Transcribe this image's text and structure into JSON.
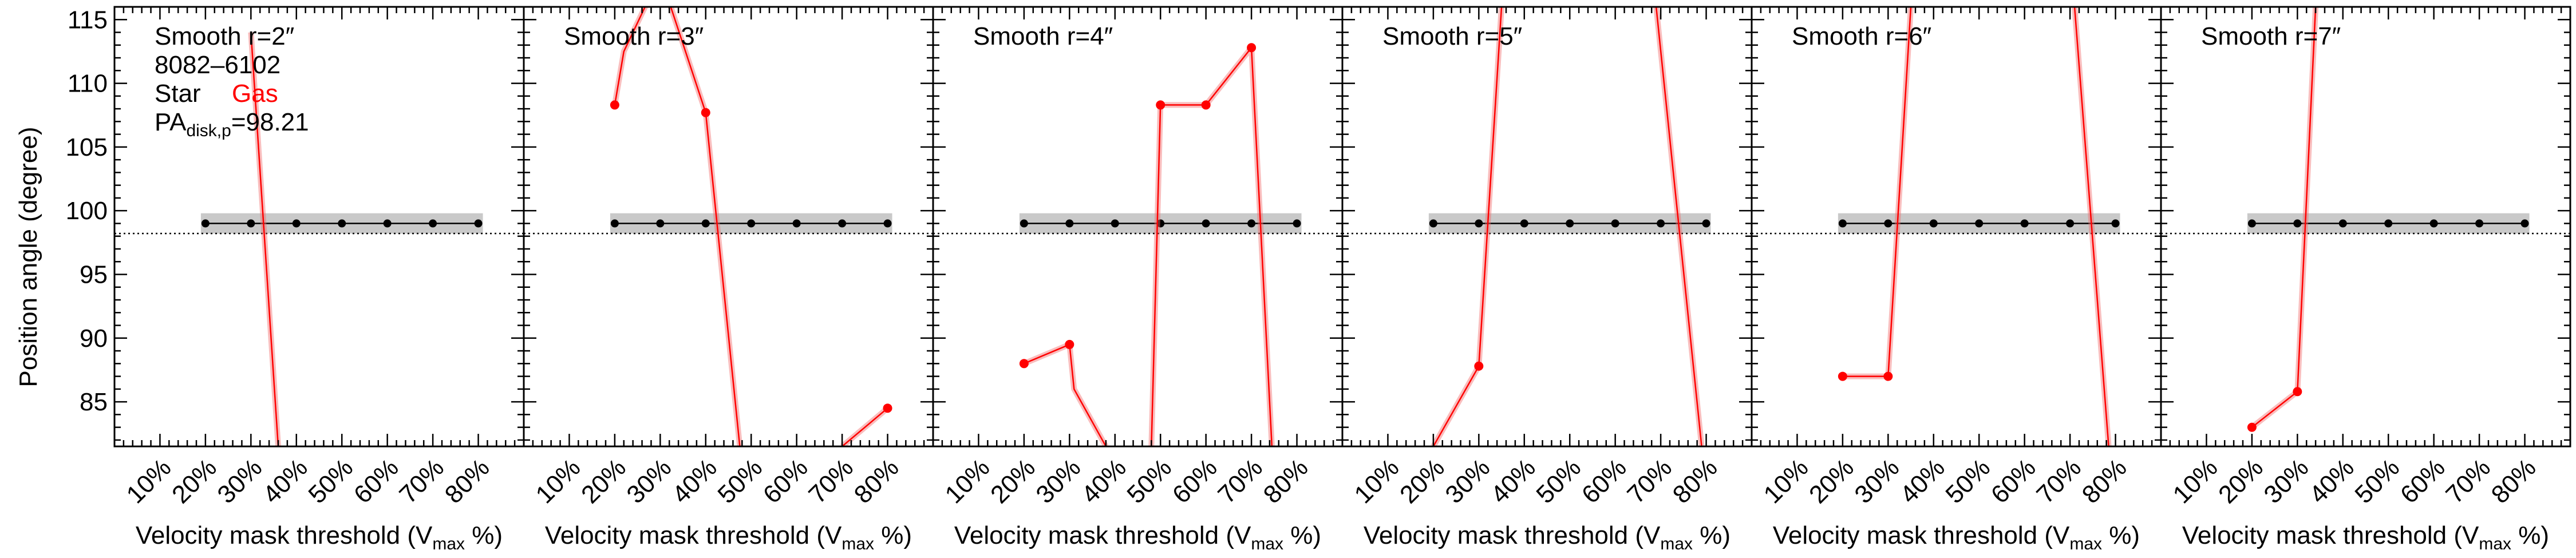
{
  "figure": {
    "ylabel": "Position angle (degree)",
    "xlabel_main": "Velocity mask threshold (V",
    "xlabel_sub": "max",
    "xlabel_tail": " %)",
    "info": {
      "plateifu": "8082–6102",
      "star_label": "Star",
      "gas_label": "Gas",
      "pa_main": "PA",
      "pa_sub": "disk,p",
      "pa_value": "=98.21"
    }
  },
  "colors": {
    "star": "#000000",
    "gas": "#ff0000",
    "gas_band": "#f26d6d",
    "star_band": "#c9c9c9",
    "gas_label": "#ff0000"
  },
  "chart_data": {
    "type": "line",
    "ylim": [
      81.5,
      116
    ],
    "yticks": [
      85,
      90,
      95,
      100,
      105,
      110,
      115
    ],
    "xlim": [
      0,
      90
    ],
    "xticks": [
      10,
      20,
      30,
      40,
      50,
      60,
      70,
      80
    ],
    "xtick_labels": [
      "10%",
      "20%",
      "30%",
      "40%",
      "50%",
      "60%",
      "70%",
      "80%"
    ],
    "reference_line": 98.21,
    "grid": false,
    "panels": [
      {
        "title": "Smooth r=2″",
        "star": {
          "x": [
            20,
            30,
            40,
            50,
            60,
            70,
            80
          ],
          "y": [
            99,
            99,
            99,
            99,
            99,
            99,
            99
          ],
          "band": [
            98.2,
            99.8
          ]
        },
        "gas": [
          {
            "x": [
              30,
              36
            ],
            "y": [
              114,
              81.5
            ]
          }
        ],
        "gas_points": []
      },
      {
        "title": "Smooth r=3″",
        "star": {
          "x": [
            20,
            30,
            40,
            50,
            60,
            70,
            80
          ],
          "y": [
            99,
            99,
            99,
            99,
            99,
            99,
            99
          ],
          "band": [
            98.2,
            99.8
          ]
        },
        "gas": [
          {
            "x": [
              20,
              22,
              30,
              40
            ],
            "y": [
              108.3,
              112.5,
              118.5,
              107.7
            ]
          },
          {
            "x": [
              40,
              47.5
            ],
            "y": [
              107.7,
              81.5
            ]
          },
          {
            "x": [
              70,
              80
            ],
            "y": [
              81.5,
              84.5
            ]
          }
        ],
        "gas_points": [
          {
            "x": 20,
            "y": 108.3
          },
          {
            "x": 40,
            "y": 107.7
          },
          {
            "x": 80,
            "y": 84.5
          }
        ]
      },
      {
        "title": "Smooth r=4″",
        "star": {
          "x": [
            20,
            30,
            40,
            50,
            60,
            70,
            80
          ],
          "y": [
            99,
            99,
            99,
            99,
            99,
            99,
            99
          ],
          "band": [
            98.2,
            99.8
          ]
        },
        "gas": [
          {
            "x": [
              20,
              30,
              31,
              38
            ],
            "y": [
              88,
              89.5,
              86,
              81.5
            ]
          },
          {
            "x": [
              48,
              50,
              60,
              70,
              74.5
            ],
            "y": [
              81.5,
              108.3,
              108.3,
              112.8,
              81.5
            ]
          }
        ],
        "gas_points": [
          {
            "x": 20,
            "y": 88
          },
          {
            "x": 30,
            "y": 89.5
          },
          {
            "x": 50,
            "y": 108.3
          },
          {
            "x": 60,
            "y": 108.3
          },
          {
            "x": 70,
            "y": 112.8
          }
        ]
      },
      {
        "title": "Smooth r=5″",
        "star": {
          "x": [
            20,
            30,
            40,
            50,
            60,
            70,
            80
          ],
          "y": [
            99,
            99,
            99,
            99,
            99,
            99,
            99
          ],
          "band": [
            98.2,
            99.8
          ]
        },
        "gas": [
          {
            "x": [
              20,
              30,
              35
            ],
            "y": [
              81.5,
              87.8,
              116
            ]
          },
          {
            "x": [
              69,
              79
            ],
            "y": [
              116,
              81.5
            ]
          }
        ],
        "gas_points": [
          {
            "x": 30,
            "y": 87.8
          }
        ]
      },
      {
        "title": "Smooth r=6″",
        "star": {
          "x": [
            20,
            30,
            40,
            50,
            60,
            70,
            80
          ],
          "y": [
            99,
            99,
            99,
            99,
            99,
            99,
            99
          ],
          "band": [
            98.2,
            99.8
          ]
        },
        "gas": [
          {
            "x": [
              20,
              30,
              35
            ],
            "y": [
              87,
              87,
              116
            ]
          },
          {
            "x": [
              71,
              78.5
            ],
            "y": [
              116,
              81.5
            ]
          }
        ],
        "gas_points": [
          {
            "x": 20,
            "y": 87
          },
          {
            "x": 30,
            "y": 87
          }
        ]
      },
      {
        "title": "Smooth r=7″",
        "star": {
          "x": [
            20,
            30,
            40,
            50,
            60,
            70,
            80
          ],
          "y": [
            99,
            99,
            99,
            99,
            99,
            99,
            99
          ],
          "band": [
            98.2,
            99.8
          ]
        },
        "gas": [
          {
            "x": [
              20,
              30,
              34
            ],
            "y": [
              83,
              85.8,
              116
            ]
          }
        ],
        "gas_points": [
          {
            "x": 20,
            "y": 83
          },
          {
            "x": 30,
            "y": 85.8
          }
        ]
      }
    ]
  }
}
